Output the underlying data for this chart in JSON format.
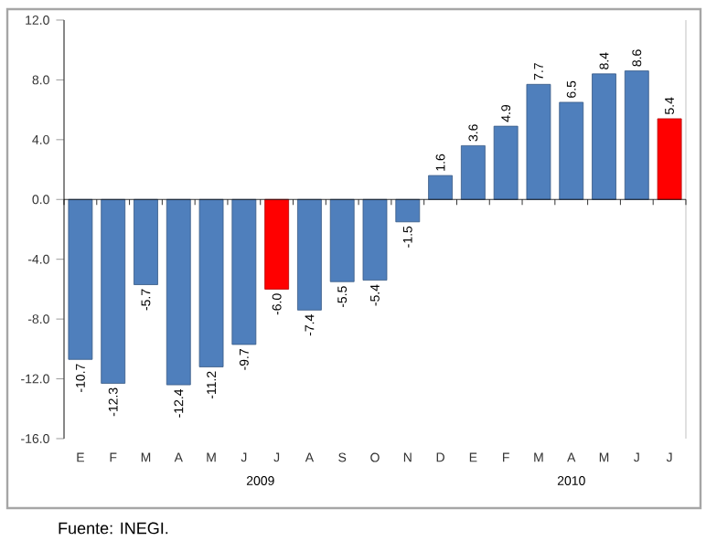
{
  "chart_data": {
    "type": "bar",
    "categories": [
      "E",
      "F",
      "M",
      "A",
      "M",
      "J",
      "J",
      "A",
      "S",
      "O",
      "N",
      "D",
      "E",
      "F",
      "M",
      "A",
      "M",
      "J",
      "J"
    ],
    "values": [
      -10.7,
      -12.3,
      -5.7,
      -12.4,
      -11.2,
      -9.7,
      -6.0,
      -7.4,
      -5.5,
      -5.4,
      -1.5,
      1.6,
      3.6,
      4.9,
      7.7,
      6.5,
      8.4,
      8.6,
      5.4
    ],
    "value_labels": [
      "-10.7",
      "-12.3",
      "-5.7",
      "-12.4",
      "-11.2",
      "-9.7",
      "-6.0",
      "-7.4",
      "-5.5",
      "-5.4",
      "-1.5",
      "1.6",
      "3.6",
      "4.9",
      "7.7",
      "6.5",
      "8.4",
      "8.6",
      "5.4"
    ],
    "colors": [
      "#4f7fbc",
      "#4f7fbc",
      "#4f7fbc",
      "#4f7fbc",
      "#4f7fbc",
      "#4f7fbc",
      "#ff0000",
      "#4f7fbc",
      "#4f7fbc",
      "#4f7fbc",
      "#4f7fbc",
      "#4f7fbc",
      "#4f7fbc",
      "#4f7fbc",
      "#4f7fbc",
      "#4f7fbc",
      "#4f7fbc",
      "#4f7fbc",
      "#ff0000"
    ],
    "ylim": [
      -16.0,
      12.0
    ],
    "yticks": [
      {
        "value": -16,
        "label": "-16.0"
      },
      {
        "value": -12,
        "label": "-12.0"
      },
      {
        "value": -8,
        "label": "-8.0"
      },
      {
        "value": -4,
        "label": "-4.0"
      },
      {
        "value": 0,
        "label": "0.0"
      },
      {
        "value": 4,
        "label": "4.0"
      },
      {
        "value": 8,
        "label": "8.0"
      },
      {
        "value": 12,
        "label": "12.0"
      }
    ],
    "annotations": [
      "2009",
      "2010",
      "Fuente: INEGI."
    ]
  }
}
